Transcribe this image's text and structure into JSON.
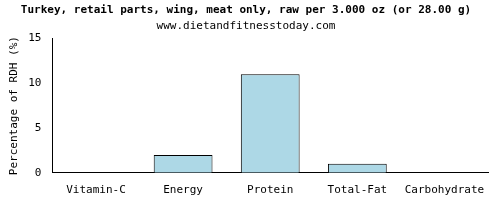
{
  "chart_data": {
    "type": "bar",
    "title": "Turkey, retail parts, wing, meat only, raw per 3.000 oz (or 28.00 g)",
    "subtitle": "www.dietandfitnesstoday.com",
    "y_label": "Percentage of RDH (%)",
    "categories": [
      "Vitamin-C",
      "Energy",
      "Protein",
      "Total-Fat",
      "Carbohydrate"
    ],
    "values": [
      0,
      2,
      11,
      1,
      0
    ],
    "color": "#add8e6",
    "ylim": [
      0,
      15
    ],
    "yticks": [
      0,
      5,
      10,
      15
    ],
    "grid": false
  }
}
